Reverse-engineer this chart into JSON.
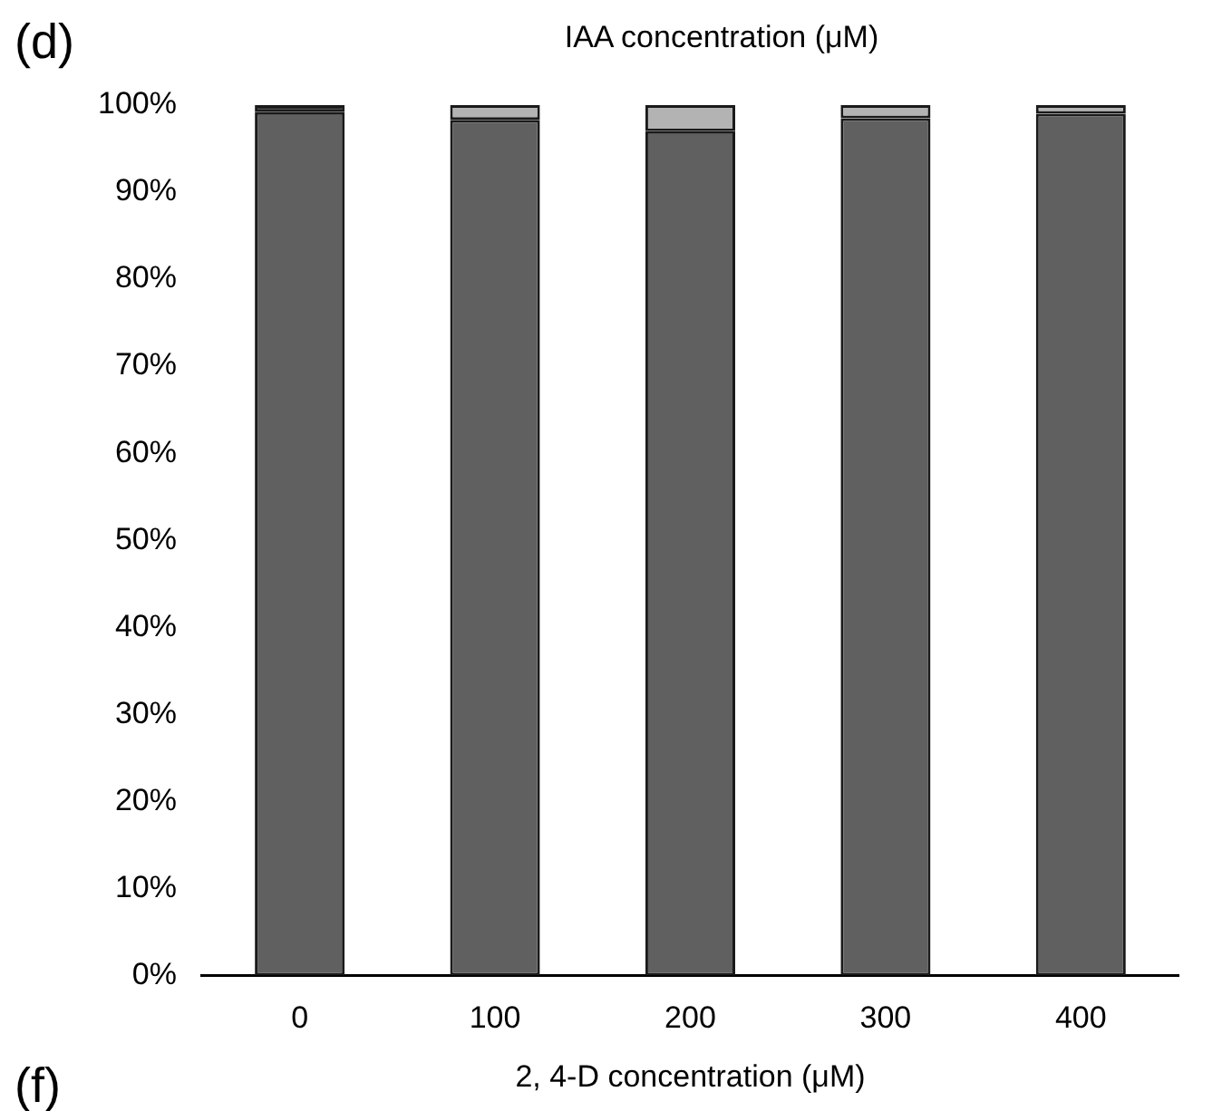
{
  "chart_data": {
    "type": "bar",
    "stacked": true,
    "xlabel": "2, 4-D concentration (μM)",
    "categories": [
      "0",
      "100",
      "200",
      "300",
      "400"
    ],
    "series": [
      {
        "color": "#606060",
        "values": [
          99.2,
          98.3,
          97,
          98.5,
          99
        ]
      },
      {
        "color": "#2a2a2a",
        "values": [
          0.8,
          null,
          null,
          null,
          null
        ]
      },
      {
        "color": "#b3b3b3",
        "values": [
          null,
          1.7,
          3,
          1.5,
          1
        ]
      }
    ],
    "ylim": [
      0,
      100
    ],
    "yticks": [
      {
        "value": 0,
        "label": "0%"
      },
      {
        "value": 10,
        "label": "10%"
      },
      {
        "value": 20,
        "label": "20%"
      },
      {
        "value": 30,
        "label": "30%"
      },
      {
        "value": 40,
        "label": "40%"
      },
      {
        "value": 50,
        "label": "50%"
      },
      {
        "value": 60,
        "label": "60%"
      },
      {
        "value": 70,
        "label": "70%"
      },
      {
        "value": 80,
        "label": "80%"
      },
      {
        "value": 90,
        "label": "90%"
      },
      {
        "value": 100,
        "label": "100%"
      }
    ],
    "grid": false,
    "legend": false,
    "annotations": [
      "(d)",
      "IAA concentration (μM)",
      "(f)"
    ]
  }
}
